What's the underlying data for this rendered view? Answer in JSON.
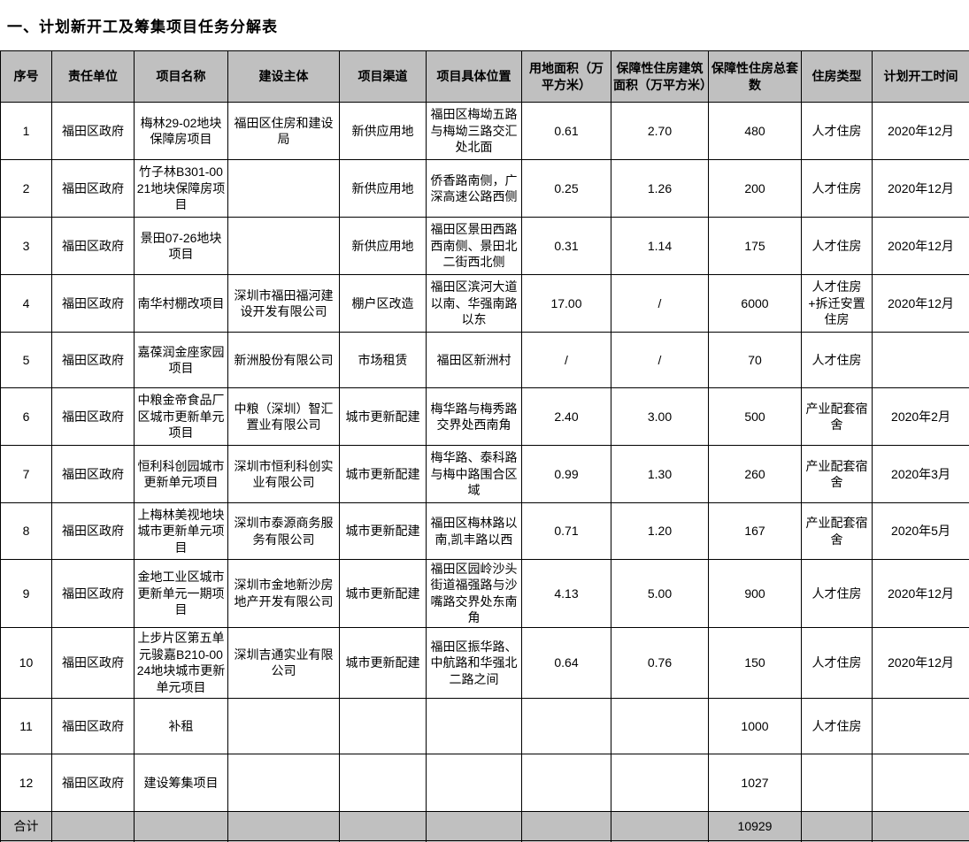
{
  "title": "一、计划新开工及筹集项目任务分解表",
  "colors": {
    "header_bg": "#c0c0c0",
    "footer_bg": "#c0c0c0",
    "border": "#000000",
    "text": "#000000"
  },
  "table": {
    "headers": [
      "序号",
      "责任单位",
      "项目名称",
      "建设主体",
      "项目渠道",
      "项目具体位置",
      "用地面积（万平方米）",
      "保障性住房建筑面积（万平方米）",
      "保障性住房总套数",
      "住房类型",
      "计划开工时间"
    ],
    "rows": [
      [
        "1",
        "福田区政府",
        "梅林29-02地块保障房项目",
        "福田区住房和建设局",
        "新供应用地",
        "福田区梅坳五路与梅坳三路交汇处北面",
        "0.61",
        "2.70",
        "480",
        "人才住房",
        "2020年12月"
      ],
      [
        "2",
        "福田区政府",
        "竹子林B301-0021地块保障房项目",
        "",
        "新供应用地",
        "侨香路南侧，广深高速公路西侧",
        "0.25",
        "1.26",
        "200",
        "人才住房",
        "2020年12月"
      ],
      [
        "3",
        "福田区政府",
        "景田07-26地块项目",
        "",
        "新供应用地",
        "福田区景田西路西南侧、景田北二街西北侧",
        "0.31",
        "1.14",
        "175",
        "人才住房",
        "2020年12月"
      ],
      [
        "4",
        "福田区政府",
        "南华村棚改项目",
        "深圳市福田福河建设开发有限公司",
        "棚户区改造",
        "福田区滨河大道以南、华强南路以东",
        "17.00",
        "/",
        "6000",
        "人才住房+拆迁安置住房",
        "2020年12月"
      ],
      [
        "5",
        "福田区政府",
        "嘉葆润金座家园项目",
        "新洲股份有限公司",
        "市场租赁",
        "福田区新洲村",
        "/",
        "/",
        "70",
        "人才住房",
        ""
      ],
      [
        "6",
        "福田区政府",
        "中粮金帝食品厂区城市更新单元项目",
        "中粮（深圳）智汇置业有限公司",
        "城市更新配建",
        "梅华路与梅秀路交界处西南角",
        "2.40",
        "3.00",
        "500",
        "产业配套宿舍",
        "2020年2月"
      ],
      [
        "7",
        "福田区政府",
        "恒利科创园城市更新单元项目",
        "深圳市恒利科创实业有限公司",
        "城市更新配建",
        "梅华路、泰科路与梅中路围合区域",
        "0.99",
        "1.30",
        "260",
        "产业配套宿舍",
        "2020年3月"
      ],
      [
        "8",
        "福田区政府",
        "上梅林美视地块城市更新单元项目",
        "深圳市泰源商务服务有限公司",
        "城市更新配建",
        "福田区梅林路以南,凯丰路以西",
        "0.71",
        "1.20",
        "167",
        "产业配套宿舍",
        "2020年5月"
      ],
      [
        "9",
        "福田区政府",
        "金地工业区城市更新单元一期项目",
        "深圳市金地新沙房地产开发有限公司",
        "城市更新配建",
        "福田区园岭沙头街道福强路与沙嘴路交界处东南角",
        "4.13",
        "5.00",
        "900",
        "人才住房",
        "2020年12月"
      ],
      [
        "10",
        "福田区政府",
        "上步片区第五单元骏嘉B210-0024地块城市更新单元项目",
        "深圳吉通实业有限公司",
        "城市更新配建",
        "福田区振华路、中航路和华强北二路之间",
        "0.64",
        "0.76",
        "150",
        "人才住房",
        "2020年12月"
      ],
      [
        "11",
        "福田区政府",
        "补租",
        "",
        "",
        "",
        "",
        "",
        "1000",
        "人才住房",
        ""
      ],
      [
        "12",
        "福田区政府",
        "建设筹集项目",
        "",
        "",
        "",
        "",
        "",
        "1027",
        "",
        ""
      ]
    ],
    "footer": {
      "label": "合计",
      "total_units": "10929"
    }
  }
}
